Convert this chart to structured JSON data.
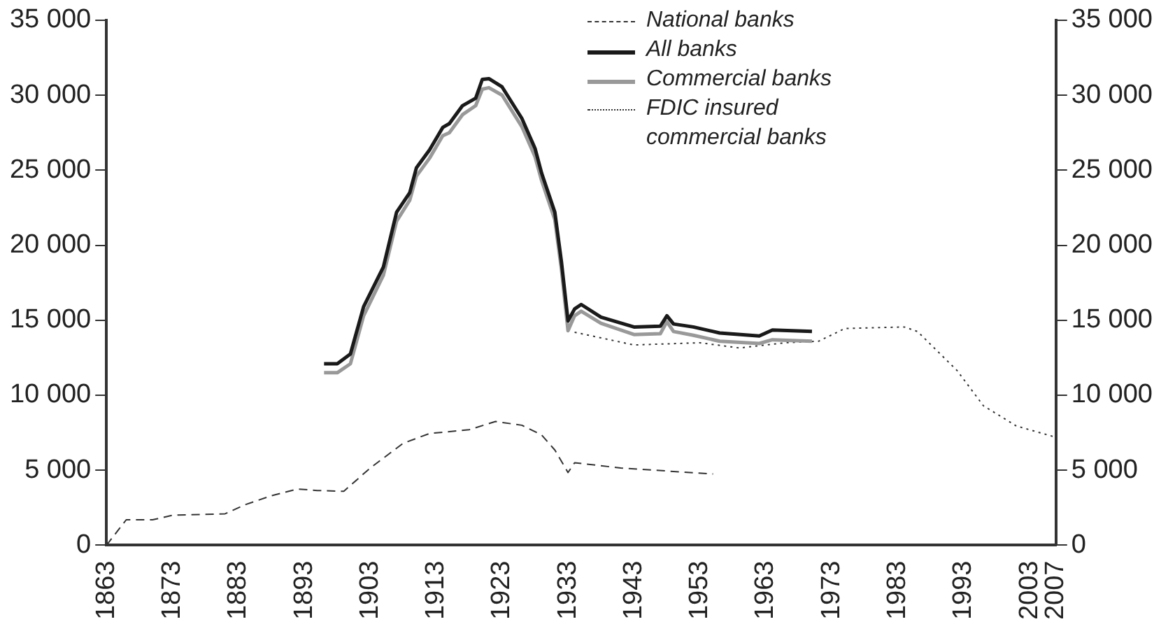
{
  "chart_data": {
    "type": "line",
    "legend": "top",
    "xlim": [
      1863,
      2007
    ],
    "xticks": [
      1863,
      1873,
      1883,
      1893,
      1903,
      1913,
      1923,
      1933,
      1943,
      1953,
      1963,
      1973,
      1983,
      1993,
      2003,
      2007
    ],
    "ylim": [
      0,
      35000
    ],
    "yticks": [
      {
        "value": 0,
        "label": "0"
      },
      {
        "value": 5000,
        "label": "5 000"
      },
      {
        "value": 10000,
        "label": "10 000"
      },
      {
        "value": 15000,
        "label": "15 000"
      },
      {
        "value": 20000,
        "label": "20 000"
      },
      {
        "value": 25000,
        "label": "25 000"
      },
      {
        "value": 30000,
        "label": "30 000"
      },
      {
        "value": 35000,
        "label": "35 000"
      }
    ],
    "y2lim": [
      0,
      35000
    ],
    "y2ticks": [
      {
        "value": 0,
        "label": "0"
      },
      {
        "value": 5000,
        "label": "5 000"
      },
      {
        "value": 10000,
        "label": "10 000"
      },
      {
        "value": 15000,
        "label": "15 000"
      },
      {
        "value": 20000,
        "label": "20 000"
      },
      {
        "value": 25000,
        "label": "25 000"
      },
      {
        "value": 30000,
        "label": "30 000"
      },
      {
        "value": 35000,
        "label": "35 000"
      }
    ],
    "series": [
      {
        "name": "National banks",
        "color": "#333333",
        "line_style": "dashed",
        "x": [
          1863,
          1866,
          1870,
          1873,
          1881,
          1884,
          1888,
          1892,
          1895,
          1899,
          1903,
          1908,
          1912,
          1918,
          1922,
          1926,
          1929,
          1931,
          1933,
          1934,
          1941,
          1948,
          1955
        ],
        "values": [
          0,
          1700,
          1700,
          2000,
          2100,
          2700,
          3300,
          3750,
          3650,
          3600,
          5150,
          6800,
          7450,
          7700,
          8250,
          8000,
          7350,
          6350,
          4850,
          5500,
          5150,
          4950,
          4750
        ]
      },
      {
        "name": "All banks",
        "color": "#1a1a1a",
        "line_style": "solid",
        "x": [
          1896,
          1898,
          1900,
          1902,
          1905,
          1907,
          1909,
          1910,
          1912,
          1914,
          1915,
          1917,
          1919,
          1920,
          1921,
          1923,
          1926,
          1928,
          1929,
          1931,
          1932,
          1933,
          1934,
          1935,
          1938,
          1943,
          1947,
          1948,
          1949,
          1952,
          1956,
          1962,
          1964,
          1970
        ],
        "values": [
          12100,
          12100,
          12750,
          15900,
          18550,
          22200,
          23500,
          25150,
          26350,
          27850,
          28100,
          29300,
          29800,
          31050,
          31100,
          30550,
          28450,
          26450,
          24800,
          22200,
          18900,
          14950,
          15750,
          16050,
          15200,
          14550,
          14600,
          15300,
          14750,
          14550,
          14150,
          13950,
          14350,
          14250
        ]
      },
      {
        "name": "Commercial banks",
        "color": "#999999",
        "line_style": "solid",
        "x": [
          1896,
          1898,
          1900,
          1902,
          1905,
          1907,
          1909,
          1910,
          1912,
          1914,
          1915,
          1917,
          1919,
          1920,
          1921,
          1923,
          1926,
          1928,
          1929,
          1931,
          1932,
          1933,
          1934,
          1935,
          1938,
          1943,
          1947,
          1948,
          1949,
          1952,
          1956,
          1962,
          1964,
          1970
        ],
        "values": [
          11500,
          11500,
          12100,
          15300,
          18000,
          21600,
          23000,
          24600,
          25800,
          27300,
          27500,
          28700,
          29300,
          30400,
          30500,
          30000,
          27900,
          25900,
          24300,
          21700,
          18400,
          14300,
          15300,
          15600,
          14800,
          14050,
          14100,
          14900,
          14250,
          14000,
          13600,
          13450,
          13700,
          13600
        ]
      },
      {
        "name": "FDIC insured commercial banks",
        "color": "#333333",
        "line_style": "dotted",
        "x": [
          1934,
          1943,
          1953,
          1959,
          1966,
          1971,
          1975,
          1984,
          1986,
          1992,
          1996,
          2001,
          2007
        ],
        "values": [
          14200,
          13350,
          13500,
          13150,
          13500,
          13600,
          14450,
          14550,
          14250,
          11650,
          9300,
          7950,
          7200
        ]
      }
    ]
  }
}
